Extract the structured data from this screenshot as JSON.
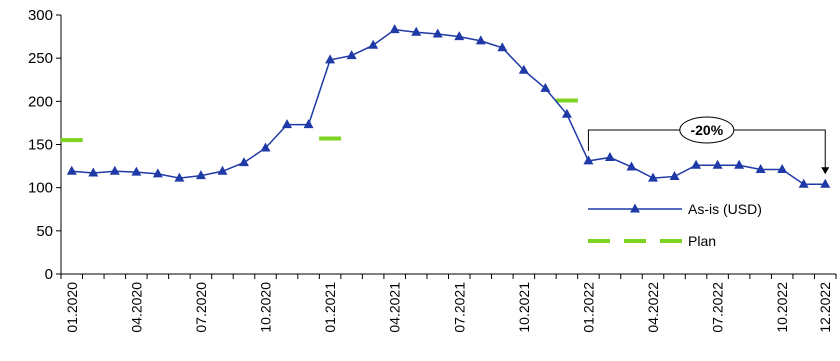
{
  "chart_data": {
    "type": "line",
    "title": "",
    "xlabel": "",
    "ylabel": "",
    "ylim": [
      0,
      300
    ],
    "yticks": [
      0,
      50,
      100,
      150,
      200,
      250,
      300
    ],
    "x": [
      "01.2020",
      "02.2020",
      "03.2020",
      "04.2020",
      "05.2020",
      "06.2020",
      "07.2020",
      "08.2020",
      "09.2020",
      "10.2020",
      "11.2020",
      "12.2020",
      "01.2021",
      "02.2021",
      "03.2021",
      "04.2021",
      "05.2021",
      "06.2021",
      "07.2021",
      "08.2021",
      "09.2021",
      "10.2021",
      "11.2021",
      "12.2021",
      "01.2022",
      "02.2022",
      "03.2022",
      "04.2022",
      "05.2022",
      "06.2022",
      "07.2022",
      "08.2022",
      "09.2022",
      "10.2022",
      "11.2022",
      "12.2022"
    ],
    "xtick_labels": [
      "01.2020",
      "04.2020",
      "07.2020",
      "10.2020",
      "01.2021",
      "04.2021",
      "07.2021",
      "10.2021",
      "01.2022",
      "04.2022",
      "07.2022",
      "10.2022",
      "12.2022"
    ],
    "grid": false,
    "legend_position": "bottom-right",
    "series": [
      {
        "name": "As-is (USD)",
        "color": "#1f3aa6",
        "marker": "triangle",
        "values": [
          119,
          117,
          119,
          118,
          116,
          111,
          114,
          119,
          129,
          146,
          173,
          173,
          248,
          253,
          265,
          283,
          280,
          278,
          275,
          270,
          262,
          236,
          215,
          185,
          131,
          135,
          124,
          111,
          113,
          126,
          126,
          126,
          121,
          121,
          104,
          104
        ]
      },
      {
        "name": "Plan",
        "color": "#7ed321",
        "style": "dash",
        "points": [
          {
            "x": "01.2020",
            "y": 155
          },
          {
            "x": "01.2021",
            "y": 157
          },
          {
            "x": "12.2021",
            "y": 201
          }
        ]
      }
    ],
    "annotations": [
      {
        "text": "-20%",
        "from": "01.2022",
        "to": "12.2022"
      }
    ]
  }
}
